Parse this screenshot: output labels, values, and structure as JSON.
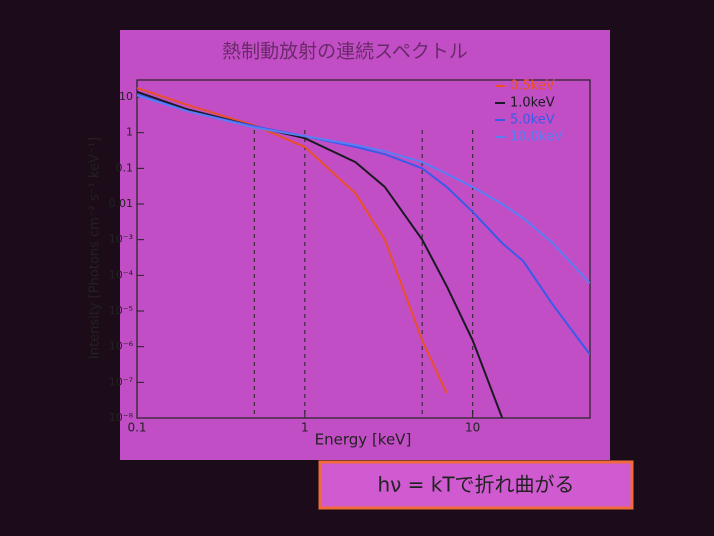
{
  "chart_data": {
    "type": "line",
    "title": "熱制動放射の連続スペクトル",
    "x_label": "Energy [keV]",
    "y_label": "Intensity [Photons cm⁻² s⁻¹ keV⁻¹]",
    "x": [
      0.1,
      0.2,
      0.5,
      1,
      2,
      3,
      5,
      7,
      10,
      15,
      20,
      30,
      50
    ],
    "series": [
      {
        "name": "0.5keV",
        "color": "#e8502a",
        "values": [
          18,
          6,
          1.6,
          0.4,
          0.02,
          0.001,
          1.5e-06,
          5e-08,
          null,
          null,
          null,
          null,
          null
        ]
      },
      {
        "name": "1.0keV",
        "color": "#1a1a22",
        "values": [
          14,
          4.5,
          1.5,
          0.7,
          0.15,
          0.03,
          0.001,
          5e-05,
          1.5e-06,
          1e-08,
          null,
          null,
          null
        ]
      },
      {
        "name": "5.0keV",
        "color": "#3a5ae8",
        "values": [
          12,
          4,
          1.5,
          0.8,
          0.4,
          0.25,
          0.1,
          0.03,
          0.006,
          0.0008,
          0.00025,
          1.5e-05,
          6e-07
        ]
      },
      {
        "name": "10.0keV",
        "color": "#5a7ef4",
        "values": [
          11,
          4,
          1.4,
          0.8,
          0.45,
          0.3,
          0.15,
          0.07,
          0.03,
          0.01,
          0.004,
          0.0008,
          6e-05
        ]
      }
    ],
    "xlim": [
      0.1,
      50
    ],
    "ylim": [
      1e-08,
      30
    ],
    "x_log": true,
    "y_log": true,
    "xticks": [
      0.1,
      1,
      10
    ],
    "yticks": [
      10,
      1,
      0.1,
      0.01,
      {
        "value": 0.001,
        "label": "10⁻³"
      },
      {
        "value": 0.0001,
        "label": "10⁻⁴"
      },
      {
        "value": 1e-05,
        "label": "10⁻⁵"
      },
      {
        "value": 1e-06,
        "label": "10⁻⁶"
      },
      {
        "value": 1e-07,
        "label": "10⁻⁷"
      },
      {
        "value": 1e-08,
        "label": "10⁻⁸"
      }
    ],
    "vlines": [
      0.5,
      1,
      5,
      10
    ],
    "legend": "upper right",
    "annotation": "hν = kTで折れ曲がる"
  }
}
